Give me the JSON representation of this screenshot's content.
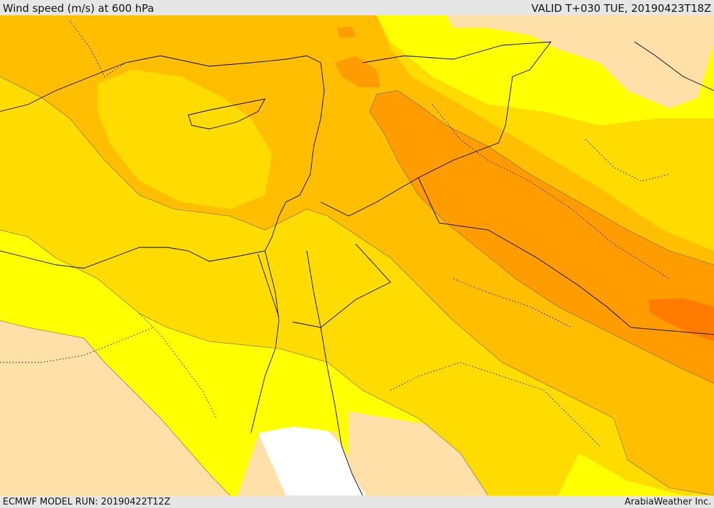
{
  "header": {
    "title": "Wind speed (m/s) at 600 hPa",
    "valid": "VALID T+030 TUE, 20190423T18Z"
  },
  "footer": {
    "model_run": "ECMWF MODEL RUN: 20190422T12Z",
    "credit": "ArabiaWeather Inc."
  },
  "colors": {
    "band_0_5": "#ffe0a8",
    "band_5_10": "#ffff00",
    "band_10_15": "#ffdc00",
    "band_15_20": "#ffbe00",
    "band_20_25": "#ff9d00",
    "band_25_30": "#ff7c00",
    "missing": "#ffffff"
  }
}
